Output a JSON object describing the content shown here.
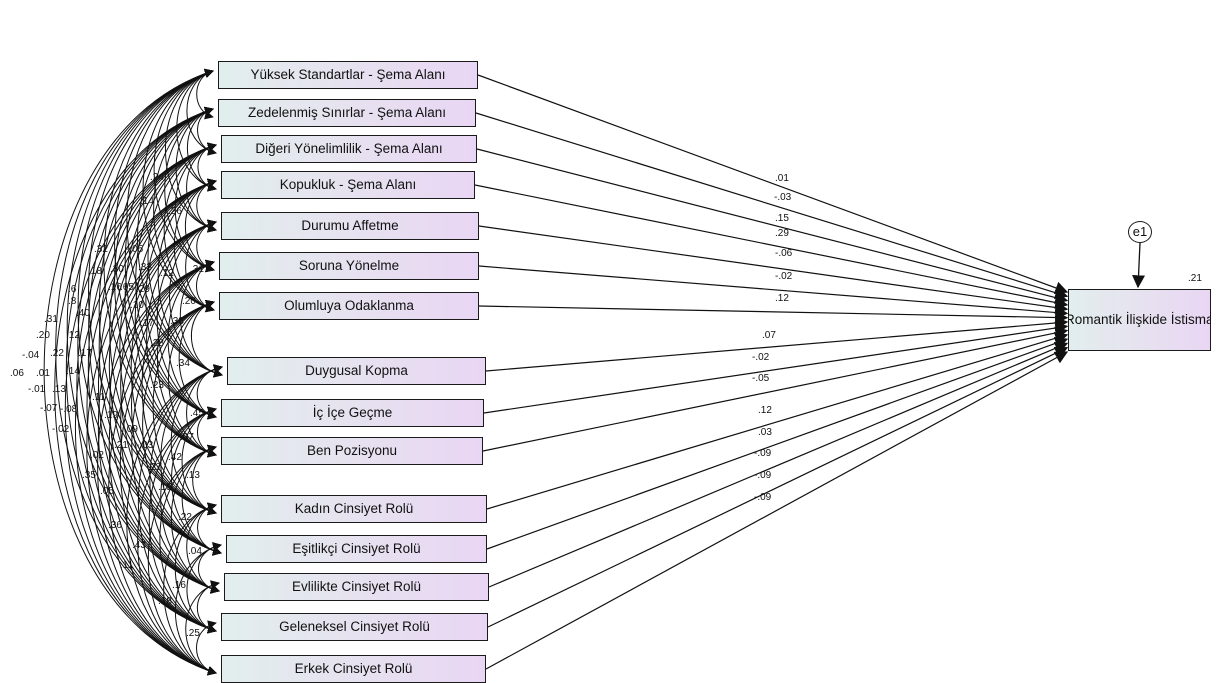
{
  "predictors": [
    {
      "label": "Yüksek Standartlar - Şema Alanı",
      "coef": ".01"
    },
    {
      "label": "Zedelenmiş Sınırlar - Şema Alanı",
      "coef": "-.03"
    },
    {
      "label": "Diğeri Yönelimlilik - Şema Alanı",
      "coef": ".15"
    },
    {
      "label": "Kopukluk - Şema Alanı",
      "coef": ".29"
    },
    {
      "label": "Durumu Affetme",
      "coef": "-.06"
    },
    {
      "label": "Soruna Yönelme",
      "coef": "-.02"
    },
    {
      "label": "Olumluya Odaklanma",
      "coef": ".12"
    },
    {
      "label": "Duygusal Kopma",
      "coef": ".07"
    },
    {
      "label": "İç İçe Geçme",
      "coef": "-.02"
    },
    {
      "label": "Ben Pozisyonu",
      "coef": "-.05"
    },
    {
      "label": "Kadın Cinsiyet Rolü",
      "coef": ".12"
    },
    {
      "label": "Eşitlikçi Cinsiyet Rolü",
      "coef": ".03"
    },
    {
      "label": "Evlilikte Cinsiyet Rolü",
      "coef": "-.09"
    },
    {
      "label": "Geleneksel Cinsiyet Rolü",
      "coef": "-.09"
    },
    {
      "label": "Erkek Cinsiyet Rolü",
      "coef": "-.09"
    }
  ],
  "outcome": {
    "label": "Romantik İlişkide İstismar",
    "r2": ".21"
  },
  "error_term": "e1",
  "covariance_labels": [
    ".06",
    "-.04",
    "-.01",
    ".20",
    ".01",
    "-.07",
    ".31",
    ".22",
    ".13",
    "-.08",
    "-.02",
    ".8",
    ".12",
    ".14",
    ".6",
    ".40",
    ".17",
    ".32",
    ".18",
    "-.05",
    ".16",
    ".30",
    ".33",
    ".29",
    ".24",
    ".65",
    ".12",
    ".10",
    ".17",
    ".28",
    ".34",
    ".45",
    ".23",
    ".11",
    ".19",
    ".21",
    ".09",
    "-.03",
    ".27",
    ".15",
    ".35",
    ".02",
    ".05",
    ".14",
    ".26",
    ".31",
    ".20",
    ".38",
    ".07",
    ".42",
    ".13",
    ".22",
    ".04",
    ".16",
    ".25",
    ".18",
    ".43",
    ".36",
    ".11"
  ]
}
